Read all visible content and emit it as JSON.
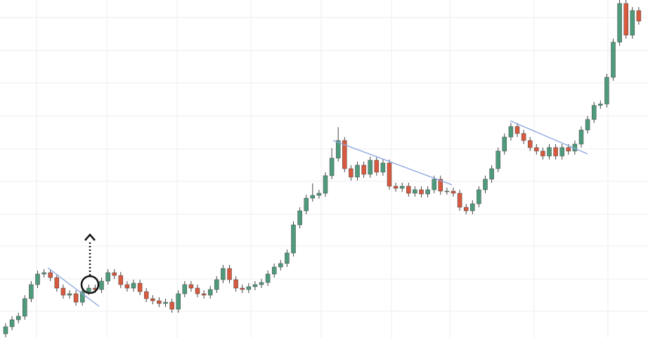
{
  "chart_data": {
    "type": "candlestick",
    "ylim": [
      0,
      481
    ],
    "up_color": "#4e9b7c",
    "down_color": "#d8593e",
    "grid": true,
    "open": [
      6,
      16,
      26,
      31,
      56,
      76,
      91,
      93,
      86,
      71,
      61,
      63,
      51,
      66,
      71,
      69,
      81,
      93,
      89,
      76,
      71,
      78,
      66,
      56,
      53,
      49,
      51,
      41,
      63,
      76,
      71,
      63,
      61,
      69,
      83,
      99,
      83,
      71,
      69,
      73,
      76,
      79,
      91,
      101,
      106,
      121,
      161,
      181,
      199,
      203,
      206,
      231,
      256,
      281,
      241,
      229,
      246,
      233,
      253,
      236,
      249,
      216,
      213,
      216,
      206,
      211,
      205,
      211,
      226,
      209,
      209,
      206,
      186,
      181,
      191,
      211,
      226,
      241,
      266,
      286,
      301,
      291,
      281,
      271,
      266,
      259,
      271,
      259,
      271,
      266,
      276,
      296,
      311,
      331,
      333,
      371,
      421,
      476,
      431,
      466
    ],
    "high": [
      21,
      31,
      36,
      61,
      81,
      96,
      98,
      98,
      91,
      76,
      68,
      68,
      71,
      76,
      76,
      86,
      98,
      98,
      94,
      81,
      83,
      83,
      71,
      61,
      58,
      56,
      56,
      68,
      81,
      81,
      76,
      68,
      74,
      88,
      104,
      104,
      88,
      76,
      78,
      81,
      84,
      96,
      106,
      111,
      126,
      166,
      186,
      204,
      220,
      211,
      236,
      270,
      300,
      286,
      246,
      251,
      251,
      258,
      258,
      254,
      254,
      221,
      221,
      221,
      216,
      216,
      216,
      231,
      231,
      214,
      214,
      211,
      191,
      196,
      216,
      231,
      246,
      271,
      291,
      306,
      306,
      296,
      286,
      276,
      271,
      276,
      276,
      276,
      276,
      281,
      301,
      316,
      336,
      338,
      376,
      426,
      481,
      481,
      471,
      471
    ],
    "low": [
      1,
      11,
      21,
      26,
      51,
      71,
      86,
      81,
      66,
      56,
      56,
      46,
      46,
      61,
      64,
      64,
      76,
      84,
      71,
      66,
      66,
      61,
      51,
      48,
      44,
      44,
      36,
      36,
      58,
      66,
      58,
      56,
      56,
      64,
      78,
      78,
      66,
      64,
      64,
      68,
      71,
      74,
      86,
      96,
      101,
      116,
      156,
      176,
      194,
      198,
      201,
      226,
      251,
      236,
      224,
      224,
      228,
      228,
      231,
      231,
      211,
      208,
      208,
      201,
      201,
      200,
      200,
      206,
      204,
      204,
      201,
      181,
      176,
      176,
      186,
      206,
      221,
      236,
      261,
      281,
      286,
      276,
      266,
      261,
      254,
      254,
      254,
      254,
      261,
      261,
      271,
      291,
      306,
      326,
      328,
      366,
      416,
      426,
      426,
      446
    ],
    "close": [
      16,
      26,
      31,
      56,
      76,
      91,
      93,
      86,
      71,
      61,
      63,
      51,
      66,
      71,
      69,
      81,
      93,
      89,
      76,
      71,
      78,
      66,
      56,
      53,
      49,
      51,
      41,
      63,
      76,
      71,
      63,
      61,
      69,
      83,
      99,
      83,
      71,
      69,
      73,
      76,
      79,
      91,
      101,
      106,
      121,
      161,
      181,
      199,
      203,
      206,
      231,
      256,
      281,
      241,
      229,
      246,
      233,
      253,
      236,
      249,
      216,
      213,
      216,
      206,
      211,
      205,
      211,
      226,
      209,
      209,
      206,
      186,
      181,
      191,
      211,
      226,
      241,
      266,
      286,
      301,
      291,
      281,
      271,
      266,
      259,
      271,
      259,
      271,
      266,
      276,
      296,
      311,
      331,
      333,
      371,
      421,
      476,
      431,
      466,
      451
    ]
  }
}
